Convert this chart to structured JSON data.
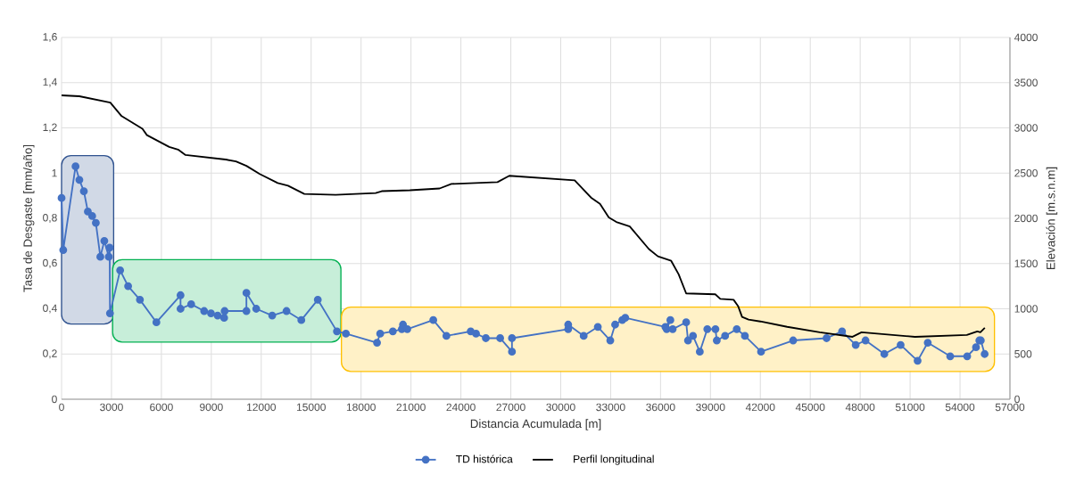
{
  "chart_data": {
    "type": "line",
    "xlabel": "Distancia Acumulada [m]",
    "ylabel": "Tasa de Desgaste [mm/año]",
    "y2label": "Elevación [m.s.n.m]",
    "xlim": [
      0,
      57000
    ],
    "xticks": [
      0,
      3000,
      6000,
      9000,
      12000,
      15000,
      18000,
      21000,
      24000,
      27000,
      30000,
      33000,
      36000,
      39000,
      42000,
      45000,
      48000,
      51000,
      54000,
      57000
    ],
    "ylim": [
      0,
      1.6
    ],
    "yticks": [
      0,
      {
        "value": 0.2,
        "label": "0,2"
      },
      {
        "value": 0.4,
        "label": "0,4"
      },
      {
        "value": 0.6,
        "label": "0,6"
      },
      {
        "value": 0.8,
        "label": "0,8"
      },
      1,
      {
        "value": 1.2,
        "label": "1,2"
      },
      {
        "value": 1.4,
        "label": "1,4"
      },
      {
        "value": 1.6,
        "label": "1,6"
      }
    ],
    "y2lim": [
      0,
      4000
    ],
    "y2ticks": [
      0,
      500,
      1000,
      1500,
      2000,
      2500,
      3000,
      3500,
      4000
    ],
    "grid": true,
    "legend": "bottom",
    "bands": [
      {
        "axis": "x",
        "from": 0,
        "to": 3130,
        "color": "#2f528f"
      },
      {
        "axis": "x",
        "from": 3070,
        "to": 16790,
        "color": "#00b050"
      },
      {
        "axis": "x",
        "from": 16820,
        "to": 56070,
        "color": "#ffc000"
      }
    ],
    "series": [
      {
        "name": "TD histórica",
        "color": "#4472c4",
        "marker": "circle",
        "x": [
          0,
          100,
          840,
          1070,
          1340,
          1580,
          1840,
          2060,
          2330,
          2570,
          2840,
          2890,
          2910,
          3520,
          4000,
          4710,
          5700,
          7150,
          7150,
          7790,
          8570,
          8980,
          9380,
          9770,
          9800,
          11110,
          11110,
          11700,
          12660,
          13520,
          14410,
          15400,
          16550,
          17090,
          18960,
          19150,
          19910,
          20450,
          20520,
          20780,
          22340,
          23130,
          24590,
          24910,
          25500,
          26360,
          27070,
          27070,
          30450,
          30450,
          31380,
          32230,
          32980,
          33270,
          33700,
          33880,
          36290,
          36590,
          36370,
          36730,
          37540,
          37650,
          37950,
          38360,
          38810,
          39300,
          39380,
          39880,
          40580,
          41070,
          42040,
          43970,
          45980,
          46910,
          47730,
          48320,
          49450,
          50430,
          51450,
          52060,
          53410,
          54430,
          54960,
          55160,
          55250,
          55480
        ],
        "values": [
          0.89,
          0.66,
          1.03,
          0.97,
          0.92,
          0.83,
          0.81,
          0.78,
          0.63,
          0.7,
          0.63,
          0.67,
          0.38,
          0.57,
          0.5,
          0.44,
          0.34,
          0.46,
          0.4,
          0.42,
          0.39,
          0.38,
          0.37,
          0.36,
          0.39,
          0.39,
          0.47,
          0.4,
          0.37,
          0.39,
          0.35,
          0.44,
          0.3,
          0.29,
          0.25,
          0.29,
          0.3,
          0.31,
          0.33,
          0.31,
          0.35,
          0.28,
          0.3,
          0.29,
          0.27,
          0.27,
          0.21,
          0.27,
          0.31,
          0.33,
          0.28,
          0.32,
          0.26,
          0.33,
          0.35,
          0.36,
          0.32,
          0.35,
          0.31,
          0.31,
          0.34,
          0.26,
          0.28,
          0.21,
          0.31,
          0.31,
          0.26,
          0.28,
          0.31,
          0.28,
          0.21,
          0.26,
          0.27,
          0.3,
          0.24,
          0.26,
          0.2,
          0.24,
          0.17,
          0.25,
          0.19,
          0.19,
          0.23,
          0.26,
          0.26,
          0.2
        ]
      },
      {
        "name": "Perfil longitudinal",
        "color": "#000000",
        "marker": "none",
        "axis": "y2",
        "x": [
          0,
          1070,
          2930,
          3610,
          4860,
          5130,
          6470,
          7000,
          7450,
          9860,
          10480,
          11110,
          11910,
          12990,
          13610,
          14590,
          16470,
          18880,
          19240,
          20930,
          22720,
          23430,
          26200,
          26910,
          30840,
          31820,
          32360,
          32890,
          33340,
          34150,
          35300,
          35840,
          36640,
          37090,
          37540,
          39290,
          39590,
          40390,
          40660,
          40900,
          41290,
          42000,
          43610,
          45570,
          47540,
          48080,
          51290,
          54410,
          55040,
          55220,
          55490
        ],
        "values": [
          3360,
          3350,
          3280,
          3130,
          2990,
          2920,
          2790,
          2760,
          2700,
          2650,
          2630,
          2580,
          2490,
          2390,
          2360,
          2270,
          2260,
          2280,
          2300,
          2310,
          2330,
          2380,
          2400,
          2470,
          2420,
          2230,
          2160,
          2010,
          1960,
          1910,
          1660,
          1580,
          1530,
          1380,
          1170,
          1160,
          1110,
          1100,
          1030,
          910,
          880,
          860,
          800,
          740,
          690,
          740,
          690,
          710,
          750,
          740,
          790
        ]
      }
    ]
  }
}
